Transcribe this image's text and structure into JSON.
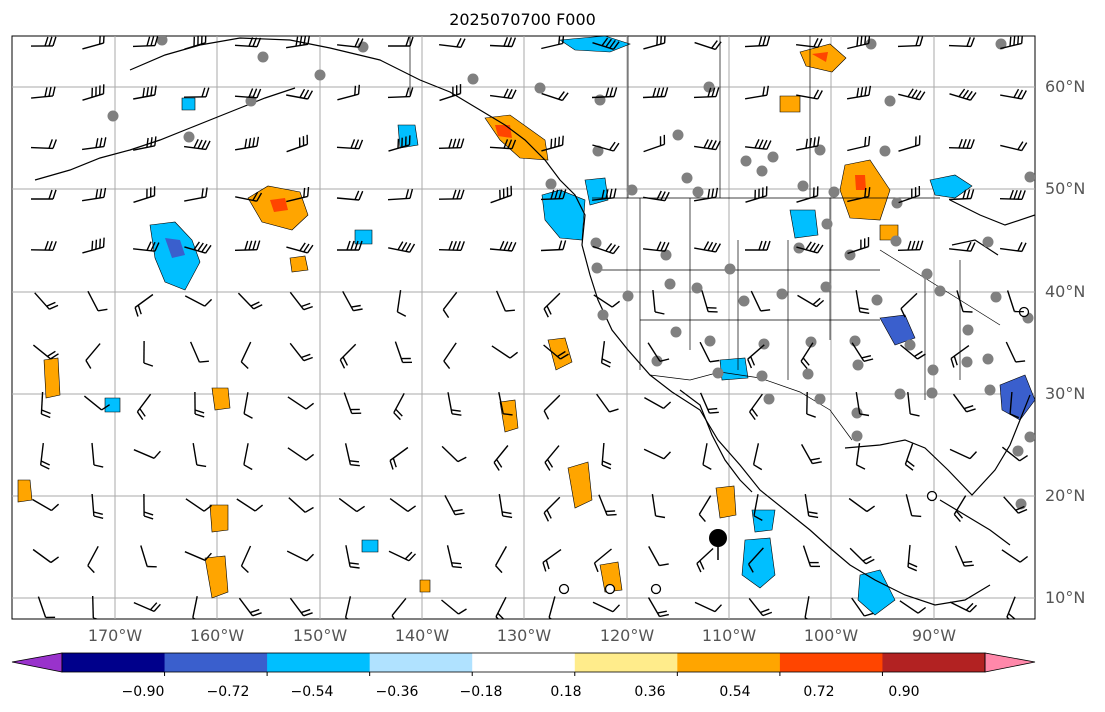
{
  "title": "2025070700 F000",
  "longitude_labels": [
    "170°W",
    "160°W",
    "150°W",
    "140°W",
    "130°W",
    "120°W",
    "110°W",
    "100°W",
    "90°W"
  ],
  "latitude_labels": [
    "60°N",
    "50°N",
    "40°N",
    "30°N",
    "20°N",
    "10°N"
  ],
  "colorbar": {
    "ticks": [
      "−0.90",
      "−0.72",
      "−0.54",
      "−0.36",
      "−0.18",
      "0.18",
      "0.36",
      "0.54",
      "0.72",
      "0.90"
    ],
    "colors": [
      "#9932cc",
      "#00008b",
      "#3a5fcd",
      "#00bfff",
      "#b0e2ff",
      "#ffffff",
      "#ffec8b",
      "#ffa500",
      "#ff4500",
      "#b22222",
      "#ff88aa"
    ]
  },
  "map": {
    "lon_range": [
      -180,
      -80
    ],
    "lat_range": [
      8,
      65
    ],
    "gridlines": true,
    "features": [
      "coastlines",
      "country borders",
      "US state borders",
      "wind barbs",
      "gray station dots",
      "shaded contours"
    ]
  }
}
